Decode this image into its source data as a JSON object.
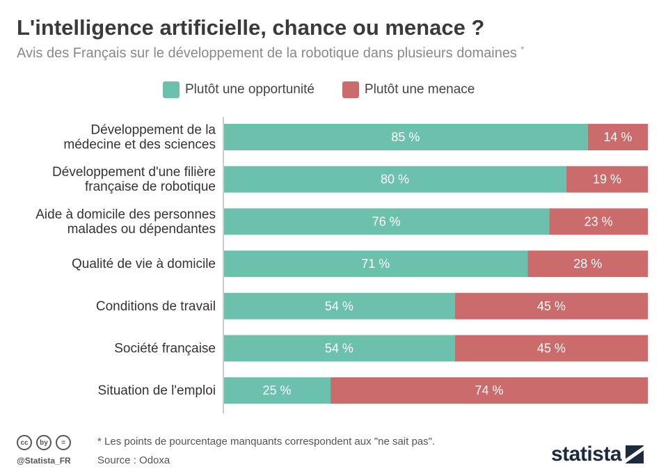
{
  "header": {
    "title": "L'intelligence artificielle, chance ou menace ?",
    "subtitle": "Avis des Français sur le développement de la robotique dans plusieurs domaines",
    "subtitle_mark": "*"
  },
  "legend": {
    "opportunity_label": "Plutôt une opportunité",
    "threat_label": "Plutôt une menace"
  },
  "colors": {
    "opportunity": "#6cc1ad",
    "threat": "#cc6b6b",
    "axis": "#cccccc"
  },
  "chart_data": {
    "type": "bar",
    "orientation": "horizontal",
    "stacked": true,
    "categories": [
      [
        "Développement de la",
        "médecine et des sciences"
      ],
      [
        "Développement d'une filière",
        "française de robotique"
      ],
      [
        "Aide à domicile des personnes",
        "malades ou dépendantes"
      ],
      [
        "Qualité de vie à domicile"
      ],
      [
        "Conditions de travail"
      ],
      [
        "Société française"
      ],
      [
        "Situation de l'emploi"
      ]
    ],
    "series": [
      {
        "name": "Plutôt une opportunité",
        "values": [
          85,
          80,
          76,
          71,
          54,
          54,
          25
        ]
      },
      {
        "name": "Plutôt une menace",
        "values": [
          14,
          19,
          23,
          28,
          45,
          45,
          74
        ]
      }
    ],
    "value_suffix": " %",
    "xlim": [
      0,
      99
    ]
  },
  "footer": {
    "note": "* Les points de pourcentage manquants correspondent aux \"ne sait pas\".",
    "source": "Source : Odoxa",
    "handle": "@Statista_FR",
    "brand": "statista",
    "cc_icons": [
      "cc",
      "by",
      "="
    ]
  }
}
